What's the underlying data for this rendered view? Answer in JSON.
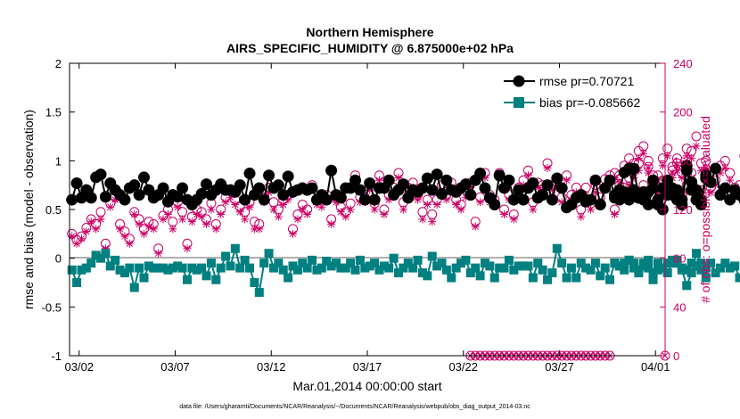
{
  "title_line1": "Northern Hemisphere",
  "title_line2": "AIRS_SPECIFIC_HUMIDITY @ 6.875000e+02 hPa",
  "xlabel": "Mar.01,2014 00:00:00 start",
  "ylabel_left": "rmse and bias (model - observation)",
  "ylabel_right": "# of obs: o=possible; ×=evaluated",
  "footnote": "data file: /Users/gharamti/Documents/NCAR/Reanalysis/~/Documents/NCAR/Reanalysis/webpub/obs_diag_output_2014-03.nc",
  "legend": {
    "rmse_label": "rmse pr=0.70721",
    "bias_label": "bias pr=-0.085662"
  },
  "colors": {
    "rmse": "#000000",
    "bias": "#008080",
    "obs": "#cc0066",
    "zero_line": "#b0b0b0"
  },
  "chart_data": {
    "type": "line",
    "x_unit": "days since Mar.01,2014 00:00",
    "xlim": [
      0.5,
      31.5
    ],
    "ylim_left": [
      -1,
      2
    ],
    "ylim_right": [
      0,
      240
    ],
    "x_tick_values": [
      1,
      6,
      11,
      16,
      21,
      26,
      31
    ],
    "x_tick_labels": [
      "03/02",
      "03/07",
      "03/12",
      "03/17",
      "03/22",
      "03/27",
      "04/01"
    ],
    "y_left_ticks": [
      -1,
      -0.5,
      0,
      0.5,
      1,
      1.5,
      2
    ],
    "y_left_tick_labels": [
      "-1",
      "-0.5",
      "0",
      "0.5",
      "1",
      "1.5",
      "2"
    ],
    "y_right_ticks": [
      0,
      40,
      80,
      120,
      160,
      200,
      240
    ],
    "y_right_tick_labels": [
      "0",
      "40",
      "80",
      "120",
      "160",
      "200",
      "240"
    ],
    "series": [
      {
        "name": "rmse",
        "segments": [
          {
            "x0": 0.625,
            "dx": 0.25,
            "values": [
              0.6,
              0.77,
              0.62,
              0.7,
              0.62,
              0.83,
              0.86,
              0.63,
              0.77,
              0.7,
              0.65,
              0.6,
              0.72,
              0.75,
              0.65,
              0.83,
              0.7,
              0.62,
              0.65,
              0.72,
              0.58,
              0.65,
              0.63,
              0.72,
              0.6,
              0.55,
              0.6,
              0.66,
              0.76,
              0.65,
              0.7,
              0.76,
              0.7,
              0.7,
              0.68,
              0.75,
              0.6,
              0.87,
              0.65,
              0.72,
              0.6,
              0.85,
              0.72,
              0.75,
              0.65,
              0.84,
              0.68,
              0.7,
              0.72,
              0.7,
              0.72,
              0.6,
              0.65,
              0.6,
              0.9,
              0.65,
              0.62,
              0.72,
              0.72,
              0.8,
              0.7,
              0.6,
              0.77,
              0.6,
              0.72,
              0.72,
              0.8,
              0.65,
              0.7,
              0.76,
              0.62,
              0.7,
              0.68,
              0.72,
              0.82,
              0.7,
              0.86,
              0.66,
              0.8,
              0.7,
              0.68,
              0.72,
              0.76,
              0.65,
              0.8,
              0.87,
              0.72,
              0.62,
              0.55,
              0.85,
              0.72,
              0.8,
              0.6,
              0.7,
              0.6,
              0.72,
              0.77,
              0.62,
              0.65,
              0.75,
              0.6,
              0.82,
              0.72,
              0.52,
              0.55,
              0.62,
              0.65,
              0.58,
              0.6,
              0.8,
              0.55,
              0.72,
              0.8,
              0.65,
              0.6,
              0.68,
              0.6,
              0.92,
              0.62,
              0.68,
              0.55,
              0.72,
              0.6,
              0.5,
              0.65,
              0.72,
              0.6,
              0.55,
              0.9,
              0.7,
              0.6,
              0.55,
              0.82,
              0.78,
              0.92,
              0.65,
              0.72,
              0.6,
              0.7,
              0.65,
              0.6,
              0.8,
              0.62,
              0.7,
              0.55,
              0.65,
              0.6,
              0.75,
              0.75,
              0.85,
              0.75,
              0.7,
              0.6,
              0.72,
              0.95,
              0.62,
              0.72,
              0.78,
              0.7,
              0.6,
              0.65,
              0.9,
              0.7,
              0.55,
              0.92,
              0.7,
              0.82,
              0.6,
              0.7,
              0.62,
              0.65
            ]
          },
          {
            "x0": 28.875,
            "dx": 0.25,
            "values": [
              0.62,
              0.7,
              0.88,
              0.92,
              0.7,
              0.62,
              0.6,
              0.68,
              0.8,
              0.55,
              0.72,
              0.8,
              0.65,
              0.7,
              0.6,
              0.95,
              0.78,
              0.7,
              0.6,
              0.85
            ]
          }
        ]
      },
      {
        "name": "bias",
        "segments": [
          {
            "x0": 0.625,
            "dx": 0.25,
            "values": [
              -0.12,
              -0.25,
              -0.12,
              -0.1,
              -0.05,
              0.03,
              0.0,
              0.05,
              -0.08,
              -0.02,
              -0.12,
              -0.15,
              -0.1,
              -0.3,
              -0.1,
              -0.2,
              -0.08,
              -0.1,
              -0.1,
              -0.1,
              -0.12,
              -0.1,
              -0.08,
              -0.1,
              -0.22,
              -0.1,
              -0.12,
              -0.1,
              -0.18,
              -0.05,
              -0.22,
              -0.1,
              0.02,
              -0.08,
              0.1,
              -0.1,
              -0.02,
              -0.1,
              -0.25,
              -0.35,
              -0.05,
              0.05,
              -0.1,
              -0.05,
              -0.12,
              -0.2,
              -0.08,
              -0.12,
              -0.05,
              -0.1,
              -0.02,
              -0.12,
              -0.1,
              -0.03,
              -0.08,
              -0.05,
              -0.1,
              -0.1,
              -0.05,
              -0.12,
              -0.02,
              -0.1,
              -0.08,
              -0.05,
              -0.12,
              -0.08,
              -0.1,
              0.0,
              -0.15,
              -0.1,
              -0.05,
              -0.1,
              -0.02,
              -0.15,
              -0.18,
              0.02,
              -0.08,
              -0.05,
              -0.12,
              -0.2,
              -0.1,
              -0.05,
              -0.02,
              -0.15,
              -0.1,
              -0.18,
              -0.05,
              -0.08,
              -0.2,
              -0.1,
              -0.1,
              -0.02,
              -0.12,
              -0.08,
              -0.08,
              -0.08,
              -0.2,
              -0.05,
              -0.12,
              -0.22,
              -0.15,
              0.1,
              -0.05,
              -0.2,
              -0.1,
              -0.2,
              -0.05,
              -0.1,
              -0.12,
              -0.05,
              -0.18,
              -0.1,
              -0.22,
              -0.05,
              -0.08,
              -0.12,
              -0.02,
              -0.1,
              -0.15,
              -0.05,
              -0.1,
              -0.22,
              -0.05,
              -0.1,
              -0.15,
              -0.05,
              -0.02,
              -0.1,
              -0.12,
              -0.05,
              -0.08,
              -0.12,
              -0.1,
              -0.05,
              -0.15,
              -0.1,
              -0.05,
              -0.1,
              -0.08,
              -0.2,
              -0.05,
              -0.12,
              -0.08,
              0.02,
              -0.1,
              -0.05,
              -0.18,
              -0.1,
              -0.25,
              -0.1,
              -0.12,
              -0.05,
              0.02,
              -0.12,
              -0.1,
              -0.05,
              -0.12,
              -0.1,
              -0.15,
              -0.05,
              -0.05,
              -0.1,
              -0.02,
              0.0,
              0.02,
              -0.05,
              -0.1,
              -0.05,
              -0.08
            ]
          },
          {
            "x0": 28.875,
            "dx": 0.25,
            "values": [
              -0.05,
              -0.08,
              -0.05,
              -0.02,
              -0.05,
              -0.12,
              -0.08,
              -0.02,
              -0.15,
              -0.12,
              -0.1,
              -0.05,
              -0.02,
              -0.05,
              -0.12,
              -0.28,
              -0.15,
              0.05,
              -0.05,
              -0.2
            ]
          }
        ]
      },
      {
        "name": "obs_possible",
        "unit": "count",
        "segments": [
          {
            "x0": 0.625,
            "dx": 0.25,
            "values": [
              100,
              95,
              98,
              105,
              112,
              108,
              118,
              92,
              125,
              130,
              108,
              102,
              96,
              118,
              112,
              104,
              110,
              108,
              88,
              115,
              120,
              110,
              126,
              118,
              92,
              114,
              120,
              118,
              112,
              125,
              108,
              120,
              130,
              135,
              128,
              122,
              118,
              126,
              110,
              108,
              130,
              138,
              126,
              120,
              128,
              132,
              104,
              116,
              124,
              120,
              140,
              128,
              128,
              132,
              112,
              130,
              122,
              118,
              125,
              148,
              130,
              130,
              140,
              125,
              148,
              120,
              132,
              138,
              150,
              126,
              138,
              142,
              132,
              118,
              128,
              116,
              128,
              140,
              132,
              142,
              128,
              124,
              136,
              142,
              110,
              130,
              150,
              132,
              128,
              150,
              120,
              132,
              116,
              138,
              144,
              152,
              126,
              142,
              140,
              158,
              140,
              142,
              130,
              148,
              132,
              138,
              120,
              138,
              125,
              140,
              130,
              145,
              148,
              150,
              140,
              138,
              146,
              152,
              158,
              140,
              160,
              148,
              138,
              144,
              142,
              155,
              162,
              128,
              140,
              150,
              130,
              136,
              160,
              138,
              144,
              156,
              160,
              150,
              138,
              140,
              164,
              144,
              158,
              152,
              148,
              150,
              142,
              162,
              150,
              154,
              158,
              162,
              148,
              158,
              154,
              154,
              160,
              170,
              180,
              162,
              154,
              168,
              160,
              148,
              170,
              138,
              160,
              158,
              148,
              164,
              160
            ]
          },
          {
            "x0": 28.875,
            "dx": 0.25,
            "values": [
              120,
              148,
              156,
              162,
              158,
              168,
              172,
              155,
              130,
              148,
              162,
              170,
              152,
              158,
              150,
              170,
              168,
              180,
              158,
              150
            ]
          }
        ]
      },
      {
        "name": "obs_evaluated",
        "unit": "count",
        "segments": [
          {
            "x0": 0.625,
            "dx": 0.25,
            "values": [
              98,
              92,
              96,
              102,
              110,
              104,
              112,
              88,
              122,
              128,
              104,
              98,
              92,
              116,
              108,
              100,
              106,
              104,
              84,
              112,
              116,
              104,
              122,
              112,
              88,
              110,
              116,
              114,
              108,
              120,
              104,
              116,
              126,
              130,
              124,
              118,
              112,
              122,
              104,
              104,
              126,
              134,
              120,
              114,
              124,
              128,
              100,
              112,
              120,
              116,
              136,
              124,
              122,
              128,
              108,
              126,
              118,
              114,
              120,
              142,
              126,
              126,
              136,
              120,
              144,
              116,
              128,
              134,
              146,
              120,
              134,
              138,
              128,
              112,
              124,
              110,
              124,
              134,
              128,
              138,
              124,
              120,
              130,
              138,
              106,
              126,
              146,
              126,
              124,
              146,
              116,
              128,
              112,
              134,
              140,
              148,
              120,
              138,
              136,
              154,
              136,
              138,
              126,
              144,
              128,
              134,
              114,
              132,
              120,
              134,
              126,
              140,
              144,
              146,
              136,
              134,
              140,
              146,
              152,
              136,
              154,
              144,
              134,
              140,
              136,
              150,
              156,
              122,
              134,
              146,
              126,
              130,
              154,
              134,
              140,
              150,
              154,
              144,
              132,
              134,
              158,
              140,
              152,
              146,
              142,
              144,
              138,
              156,
              146,
              150,
              154,
              156,
              142,
              152,
              148,
              148,
              154,
              164,
              172,
              156,
              148,
              162,
              154,
              142,
              164,
              132,
              154,
              152,
              142,
              158,
              154
            ]
          },
          {
            "x0": 28.875,
            "dx": 0.25,
            "values": [
              116,
              142,
              150,
              156,
              152,
              162,
              166,
              150,
              126,
              144,
              156,
              164,
              146,
              152,
              146,
              164,
              162,
              172,
              152,
              144
            ]
          }
        ]
      },
      {
        "name": "obs_zero_count",
        "unit": "count",
        "segments": [
          {
            "x0": 21.375,
            "dx": 0.25,
            "values": [
              0,
              0,
              0,
              0,
              0,
              0,
              0,
              0,
              0,
              0,
              0,
              0,
              0,
              0,
              0,
              0,
              0,
              0,
              0,
              0,
              0,
              0,
              0,
              0,
              0,
              0,
              0,
              0,
              0,
              0
            ]
          },
          {
            "x0": 31.5,
            "dx": 0.25,
            "values": [
              0
            ]
          }
        ]
      }
    ]
  }
}
